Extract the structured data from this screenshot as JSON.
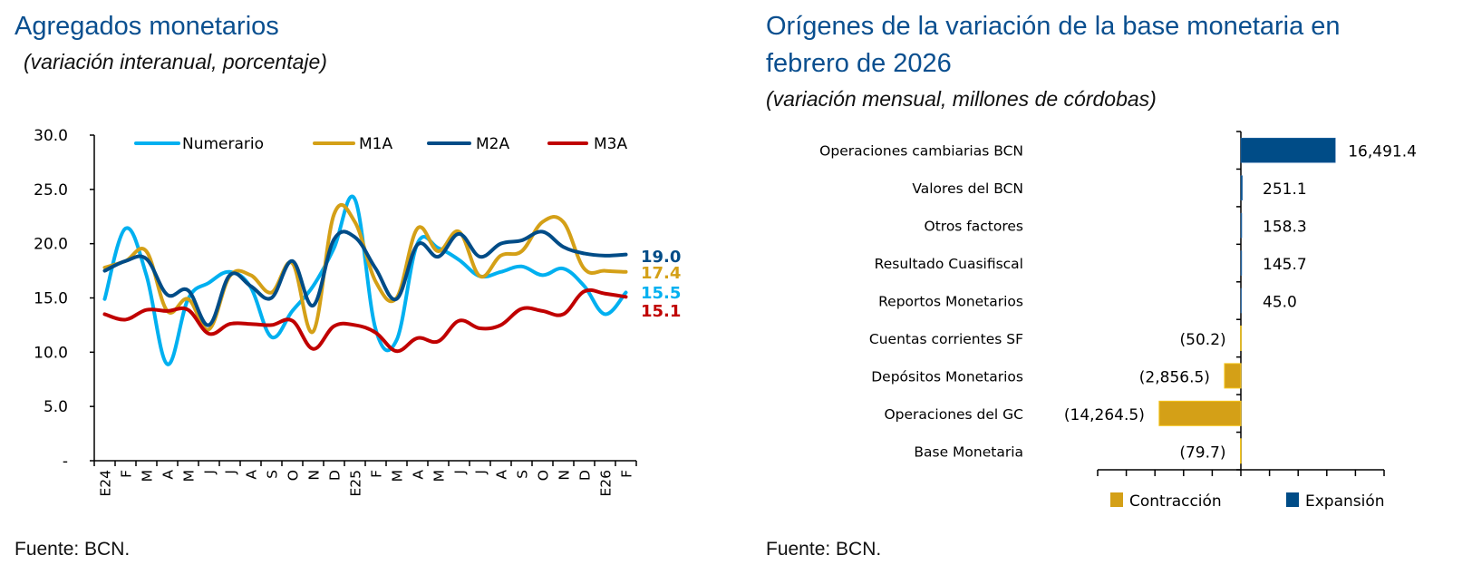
{
  "chart_data": [
    {
      "type": "line",
      "title": "Agregados monetarios",
      "subtitle": "(variación interanual, porcentaje)",
      "source": "Fuente: BCN.",
      "categories": [
        "E24",
        "F",
        "M",
        "A",
        "M",
        "J",
        "J",
        "A",
        "S",
        "O",
        "N",
        "D",
        "E25",
        "F",
        "M",
        "A",
        "M",
        "J",
        "J",
        "A",
        "S",
        "O",
        "N",
        "D",
        "E26",
        "F"
      ],
      "ylim": [
        0,
        30
      ],
      "yticks": [
        30,
        25,
        20,
        15,
        10,
        5,
        0
      ],
      "ytick_labels": [
        "30.0",
        "25.0",
        "20.0",
        "15.0",
        "10.0",
        "5.0",
        "-"
      ],
      "grid": false,
      "legend_position": "top",
      "series": [
        {
          "name": "Numerario",
          "color": "#00b0f0",
          "end_label": "15.5",
          "values": [
            14.9,
            21.4,
            17.1,
            8.9,
            14.9,
            16.4,
            17.4,
            16.0,
            11.4,
            13.8,
            16.1,
            19.6,
            24.1,
            12.1,
            11.1,
            20.0,
            19.6,
            18.5,
            17.0,
            17.4,
            17.9,
            17.1,
            17.7,
            16.1,
            13.5,
            15.5
          ]
        },
        {
          "name": "M1A",
          "color": "#d4a017",
          "end_label": "17.4",
          "values": [
            17.8,
            18.4,
            19.3,
            13.8,
            14.9,
            12.1,
            17.0,
            17.1,
            15.5,
            18.2,
            11.9,
            22.7,
            22.0,
            16.5,
            15.0,
            21.4,
            19.3,
            21.1,
            17.0,
            18.9,
            19.3,
            22.0,
            22.0,
            17.7,
            17.5,
            17.4
          ]
        },
        {
          "name": "M2A",
          "color": "#004c87",
          "end_label": "19.0",
          "values": [
            17.5,
            18.4,
            18.6,
            15.3,
            15.7,
            12.5,
            17.1,
            16.1,
            15.0,
            18.4,
            14.3,
            20.4,
            20.6,
            17.7,
            14.9,
            19.9,
            18.8,
            20.9,
            18.8,
            20.0,
            20.3,
            21.1,
            19.7,
            19.1,
            18.9,
            19.0
          ]
        },
        {
          "name": "M3A",
          "color": "#c00000",
          "end_label": "15.1",
          "values": [
            13.5,
            13.0,
            13.9,
            13.8,
            13.9,
            11.7,
            12.6,
            12.6,
            12.5,
            12.9,
            10.3,
            12.4,
            12.5,
            11.8,
            10.1,
            11.3,
            11.0,
            12.9,
            12.2,
            12.5,
            14.0,
            13.8,
            13.5,
            15.6,
            15.4,
            15.1
          ]
        }
      ]
    },
    {
      "type": "bar",
      "orientation": "horizontal",
      "title_lines": [
        "Orígenes de la variación de la base monetaria en",
        "febrero de 2026"
      ],
      "subtitle": "(variación mensual, millones de córdobas)",
      "source": "Fuente: BCN.",
      "xlim": [
        -25000,
        25000
      ],
      "xtick_step": 5000,
      "grid": false,
      "legend_position": "bottom",
      "legend": [
        {
          "name": "Contracción",
          "color": "#d4a017"
        },
        {
          "name": "Expansión",
          "color": "#004c87"
        }
      ],
      "categories": [
        "Operaciones cambiarias BCN",
        "Valores del BCN",
        "Otros factores",
        "Resultado Cuasifiscal",
        "Reportos Monetarios",
        "Cuentas corrientes SF",
        "Depósitos Monetarios",
        "Operaciones del GC",
        "Base Monetaria"
      ],
      "values": [
        16491.4,
        251.1,
        158.3,
        145.7,
        45.0,
        -50.2,
        -2856.5,
        -14264.5,
        -79.7
      ],
      "value_labels": [
        "16,491.4",
        "251.1",
        "158.3",
        "145.7",
        "45.0",
        "(50.2)",
        "(2,856.5)",
        "(14,264.5)",
        "(79.7)"
      ]
    }
  ]
}
